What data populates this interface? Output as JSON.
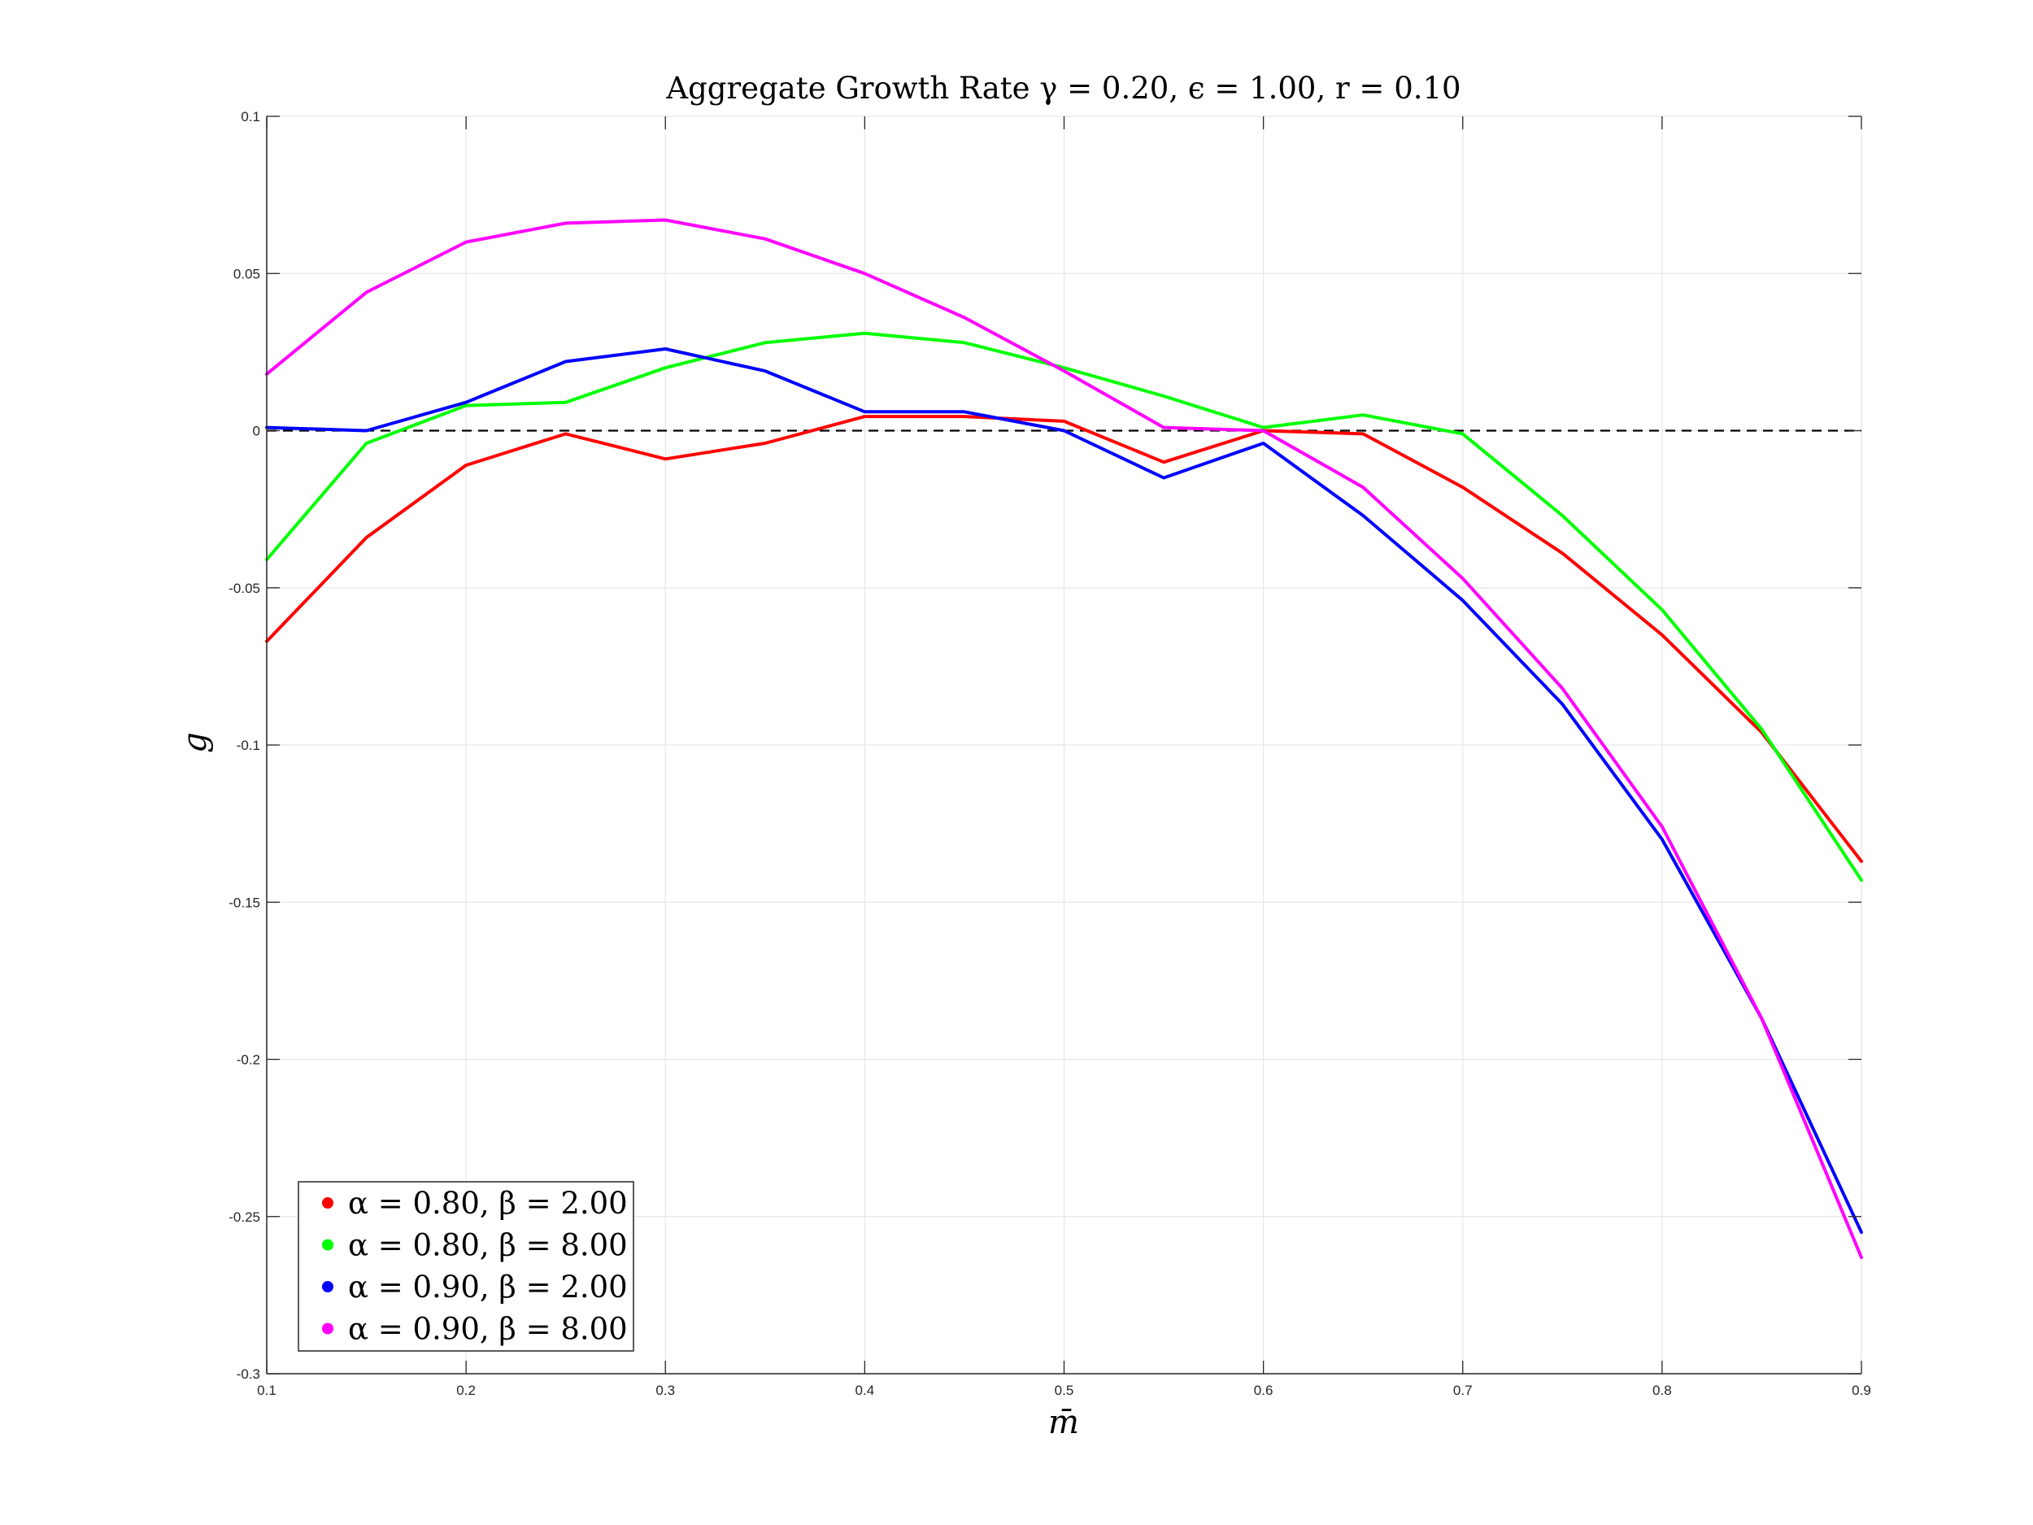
{
  "chart_data": {
    "type": "line",
    "title": "Aggregate Growth Rate γ = 0.20, ϵ = 1.00, r = 0.10",
    "xlabel": "m̄",
    "ylabel": "g",
    "xlim": [
      0.1,
      0.9
    ],
    "ylim": [
      -0.3,
      0.1
    ],
    "x_ticks": [
      "0.1",
      "0.2",
      "0.3",
      "0.4",
      "0.5",
      "0.6",
      "0.7",
      "0.8",
      "0.9"
    ],
    "y_ticks": [
      "0.1",
      "0.05",
      "0",
      "-0.05",
      "-0.1",
      "-0.15",
      "-0.2",
      "-0.25",
      "-0.3"
    ],
    "grid": true,
    "legend_position": "bottom-left",
    "reference_line": {
      "y": 0,
      "style": "dashed",
      "color": "#000000"
    },
    "x": [
      0.1,
      0.15,
      0.2,
      0.25,
      0.3,
      0.35,
      0.4,
      0.45,
      0.5,
      0.55,
      0.6,
      0.65,
      0.7,
      0.75,
      0.8,
      0.85,
      0.9
    ],
    "series": [
      {
        "name": "α = 0.80, β = 2.00",
        "color": "#ff0000",
        "values": [
          -0.067,
          -0.034,
          -0.011,
          -0.001,
          -0.009,
          -0.004,
          0.0045,
          0.0045,
          0.003,
          -0.01,
          0.0,
          -0.001,
          -0.018,
          -0.039,
          -0.065,
          -0.096,
          -0.137
        ]
      },
      {
        "name": "α = 0.80, β = 8.00",
        "color": "#00ff00",
        "values": [
          -0.041,
          -0.004,
          0.008,
          0.009,
          0.02,
          0.028,
          0.031,
          0.028,
          0.02,
          0.011,
          0.001,
          0.005,
          -0.001,
          -0.027,
          -0.057,
          -0.095,
          -0.143
        ]
      },
      {
        "name": "α = 0.90, β = 2.00",
        "color": "#0000ff",
        "values": [
          0.001,
          0.0,
          0.009,
          0.022,
          0.026,
          0.019,
          0.006,
          0.006,
          0.0,
          -0.015,
          -0.004,
          -0.027,
          -0.054,
          -0.087,
          -0.13,
          -0.187,
          -0.255
        ]
      },
      {
        "name": "α = 0.90, β = 8.00",
        "color": "#ff00ff",
        "values": [
          0.018,
          0.044,
          0.06,
          0.066,
          0.067,
          0.061,
          0.05,
          0.036,
          0.019,
          0.001,
          0.0,
          -0.018,
          -0.047,
          -0.082,
          -0.126,
          -0.187,
          -0.263
        ]
      }
    ]
  }
}
